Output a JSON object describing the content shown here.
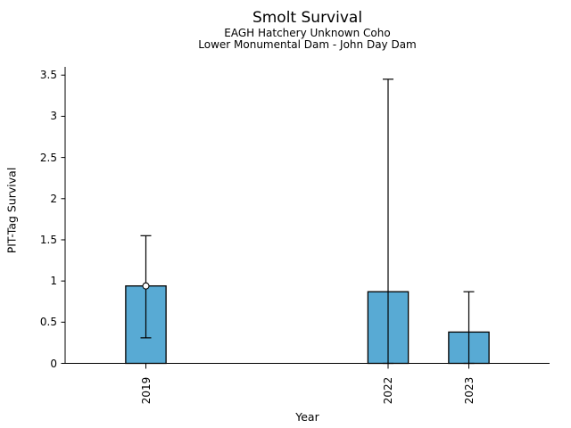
{
  "chart_data": {
    "type": "bar",
    "title": "Smolt Survival",
    "subtitles": [
      "EAGH Hatchery Unknown Coho",
      "Lower Monumental Dam - John Day Dam"
    ],
    "xlabel": "Year",
    "ylabel": "PIT-Tag Survival",
    "x_scale": "linear",
    "xlim": [
      2018,
      2024
    ],
    "ylim": [
      0,
      3.6
    ],
    "x_ticks": [
      2019,
      2022,
      2023
    ],
    "x_tick_labels": [
      "2019",
      "2022",
      "2023"
    ],
    "x_tick_rotation": 90,
    "y_ticks": [
      0,
      0.5,
      1,
      1.5,
      2,
      2.5,
      3,
      3.5
    ],
    "y_tick_labels": [
      "0",
      "0.5",
      "1",
      "1.5",
      "2",
      "2.5",
      "3",
      "3.5"
    ],
    "bars": [
      {
        "year": "2019",
        "x": 2019,
        "value": 0.94,
        "ci_low": 0.31,
        "ci_high": 1.55,
        "marker": true
      },
      {
        "year": "2022",
        "x": 2022,
        "value": 0.87,
        "ci_low": 0.0,
        "ci_high": 3.45,
        "marker": false
      },
      {
        "year": "2023",
        "x": 2023,
        "value": 0.38,
        "ci_low": 0.0,
        "ci_high": 0.87,
        "marker": false
      }
    ],
    "bar_width_years": 0.5,
    "bar_fill": "#58aad4",
    "bar_edge": "#000000",
    "errorbar_color": "#000000",
    "marker_fill": "#ffffff",
    "axis_color": "#000000",
    "grid": false,
    "legend": null
  }
}
